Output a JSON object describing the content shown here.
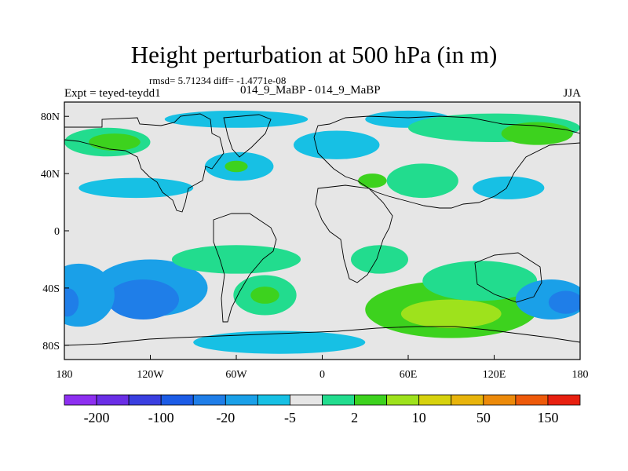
{
  "title": "Height perturbation at 500 hPa (in m)",
  "stats": "rmsd= 5.71234 diff= -1.4771e-08",
  "left_label": "Expt = teyed-teydd1",
  "center_label": "014_9_MaBP - 014_9_MaBP",
  "right_label": "JJA",
  "lat_ticks": [
    "80N",
    "40N",
    "0",
    "40S",
    "80S"
  ],
  "lon_ticks": [
    "180",
    "120W",
    "60W",
    "0",
    "60E",
    "120E",
    "180"
  ],
  "colorbar": {
    "colors": [
      "#8d2ff0",
      "#6a2ee6",
      "#3a3fe0",
      "#1c5ce6",
      "#1f7ee8",
      "#1aa0e8",
      "#17c0e4",
      "#e6e6e6",
      "#22dc8e",
      "#3dd21e",
      "#9ee21c",
      "#d7d20e",
      "#e8b40c",
      "#ec8a0a",
      "#ee5a0a",
      "#e82010"
    ],
    "labels": [
      "-200",
      "-100",
      "-20",
      "-5",
      "2",
      "10",
      "50",
      "150"
    ]
  },
  "chart_data": {
    "type": "contour-map",
    "title": "Height perturbation at 500 hPa (in m)",
    "variable": "geopotential height perturbation",
    "units": "m",
    "level": "500 hPa",
    "season": "JJA",
    "lon_range": [
      -180,
      180
    ],
    "lat_range": [
      -90,
      90
    ],
    "rmsd": 5.71234,
    "diff": -1.4771e-08,
    "levels": [
      -200,
      -150,
      -100,
      -50,
      -20,
      -10,
      -5,
      -2,
      2,
      5,
      10,
      20,
      50,
      100,
      150,
      200
    ],
    "blobs": [
      {
        "lon": -60,
        "lat": 78,
        "rlon": 50,
        "rlat": 6,
        "level": 6
      },
      {
        "lon": -150,
        "lat": 62,
        "rlon": 30,
        "rlat": 10,
        "level": 8
      },
      {
        "lon": -145,
        "lat": 62,
        "rlon": 18,
        "rlat": 6,
        "level": 9
      },
      {
        "lon": -58,
        "lat": 45,
        "rlon": 24,
        "rlat": 10,
        "level": 6
      },
      {
        "lon": -60,
        "lat": 45,
        "rlon": 8,
        "rlat": 4,
        "level": 9
      },
      {
        "lon": -130,
        "lat": 30,
        "rlon": 40,
        "rlat": 7,
        "level": 6
      },
      {
        "lon": 10,
        "lat": 60,
        "rlon": 30,
        "rlat": 10,
        "level": 6
      },
      {
        "lon": 60,
        "lat": 78,
        "rlon": 30,
        "rlat": 6,
        "level": 6
      },
      {
        "lon": 120,
        "lat": 72,
        "rlon": 60,
        "rlat": 10,
        "level": 8
      },
      {
        "lon": 150,
        "lat": 68,
        "rlon": 25,
        "rlat": 8,
        "level": 9
      },
      {
        "lon": 35,
        "lat": 35,
        "rlon": 10,
        "rlat": 5,
        "level": 9
      },
      {
        "lon": 70,
        "lat": 35,
        "rlon": 25,
        "rlat": 12,
        "level": 8
      },
      {
        "lon": 130,
        "lat": 30,
        "rlon": 25,
        "rlat": 8,
        "level": 6
      },
      {
        "lon": -120,
        "lat": -40,
        "rlon": 40,
        "rlat": 20,
        "level": 5
      },
      {
        "lon": -125,
        "lat": -48,
        "rlon": 25,
        "rlat": 14,
        "level": 4
      },
      {
        "lon": -60,
        "lat": -20,
        "rlon": 45,
        "rlat": 10,
        "level": 8
      },
      {
        "lon": -40,
        "lat": -45,
        "rlon": 22,
        "rlat": 14,
        "level": 8
      },
      {
        "lon": -40,
        "lat": -45,
        "rlon": 10,
        "rlat": 6,
        "level": 9
      },
      {
        "lon": -170,
        "lat": -45,
        "rlon": 25,
        "rlat": 22,
        "level": 5
      },
      {
        "lon": -178,
        "lat": -50,
        "rlon": 8,
        "rlat": 10,
        "level": 4
      },
      {
        "lon": 40,
        "lat": -20,
        "rlon": 20,
        "rlat": 10,
        "level": 8
      },
      {
        "lon": 90,
        "lat": -55,
        "rlon": 60,
        "rlat": 20,
        "level": 9
      },
      {
        "lon": 90,
        "lat": -58,
        "rlon": 35,
        "rlat": 10,
        "level": 10
      },
      {
        "lon": 110,
        "lat": -35,
        "rlon": 40,
        "rlat": 14,
        "level": 8
      },
      {
        "lon": 160,
        "lat": -48,
        "rlon": 25,
        "rlat": 14,
        "level": 5
      },
      {
        "lon": 170,
        "lat": -50,
        "rlon": 12,
        "rlat": 8,
        "level": 4
      },
      {
        "lon": -30,
        "lat": -78,
        "rlon": 60,
        "rlat": 8,
        "level": 6
      }
    ]
  }
}
